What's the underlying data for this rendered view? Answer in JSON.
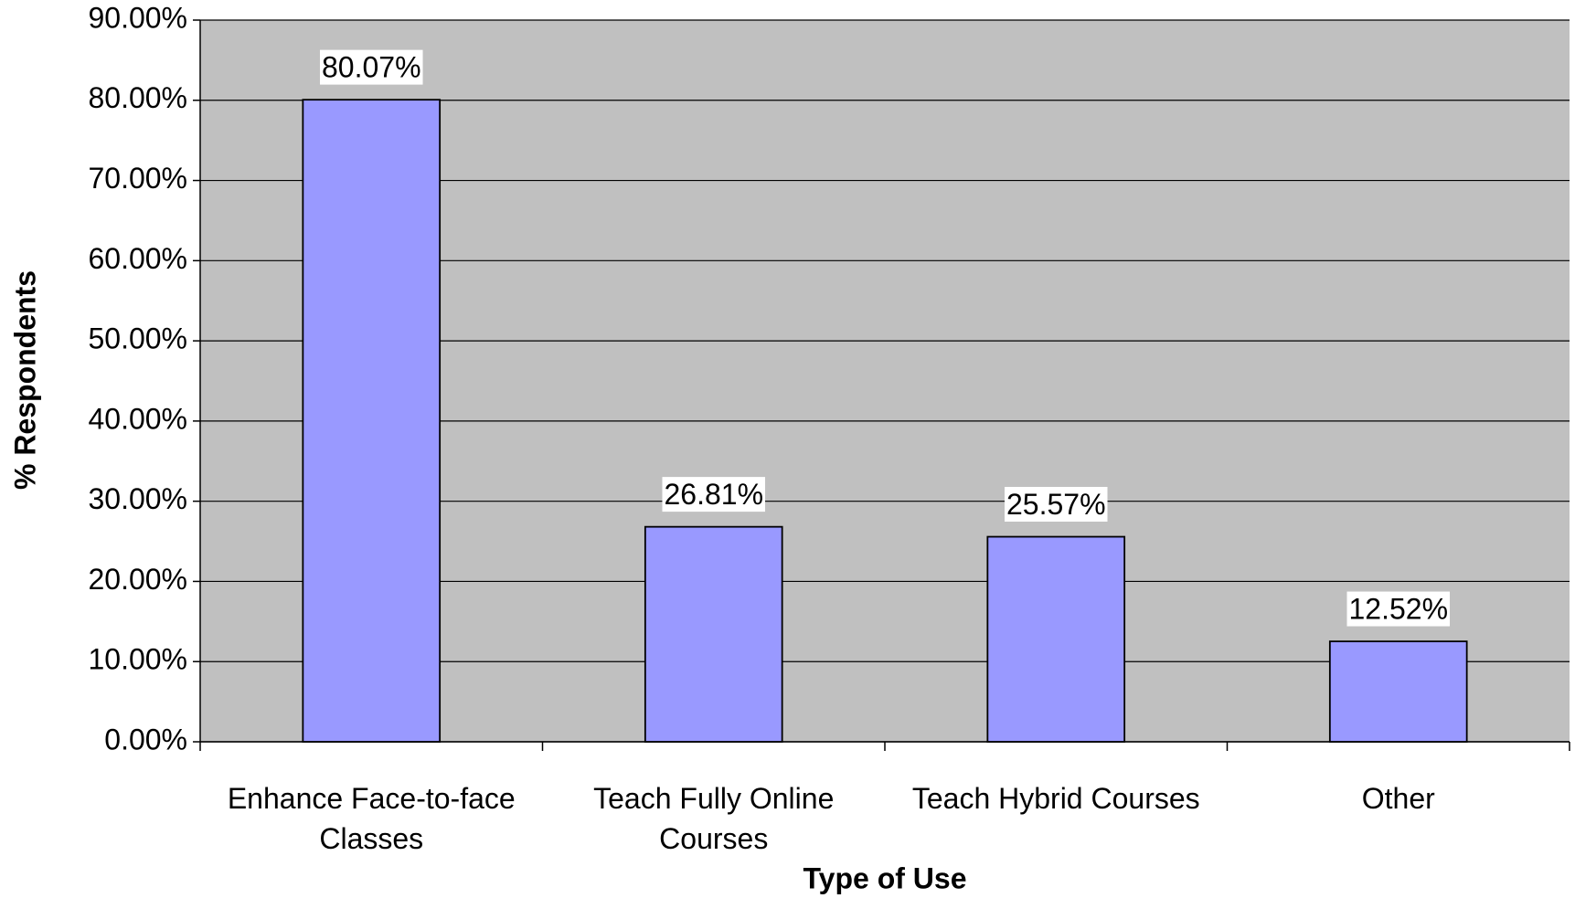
{
  "chart_data": {
    "type": "bar",
    "x_label": "Type of Use",
    "y_label": "% Respondents",
    "categories": [
      "Enhance Face-to-face Classes",
      "Teach Fully Online Courses",
      "Teach Hybrid Courses",
      "Other"
    ],
    "values": [
      80.07,
      26.81,
      25.57,
      12.52
    ],
    "value_labels": [
      "80.07%",
      "26.81%",
      "25.57%",
      "12.52%"
    ],
    "color": "#9999ff",
    "ylim": [
      0,
      90
    ],
    "yticks": [
      {
        "value": 0,
        "label": "0.00%"
      },
      {
        "value": 10,
        "label": "10.00%"
      },
      {
        "value": 20,
        "label": "20.00%"
      },
      {
        "value": 30,
        "label": "30.00%"
      },
      {
        "value": 40,
        "label": "40.00%"
      },
      {
        "value": 50,
        "label": "50.00%"
      },
      {
        "value": 60,
        "label": "60.00%"
      },
      {
        "value": 70,
        "label": "70.00%"
      },
      {
        "value": 80,
        "label": "80.00%"
      },
      {
        "value": 90,
        "label": "90.00%"
      }
    ],
    "grid": true
  }
}
